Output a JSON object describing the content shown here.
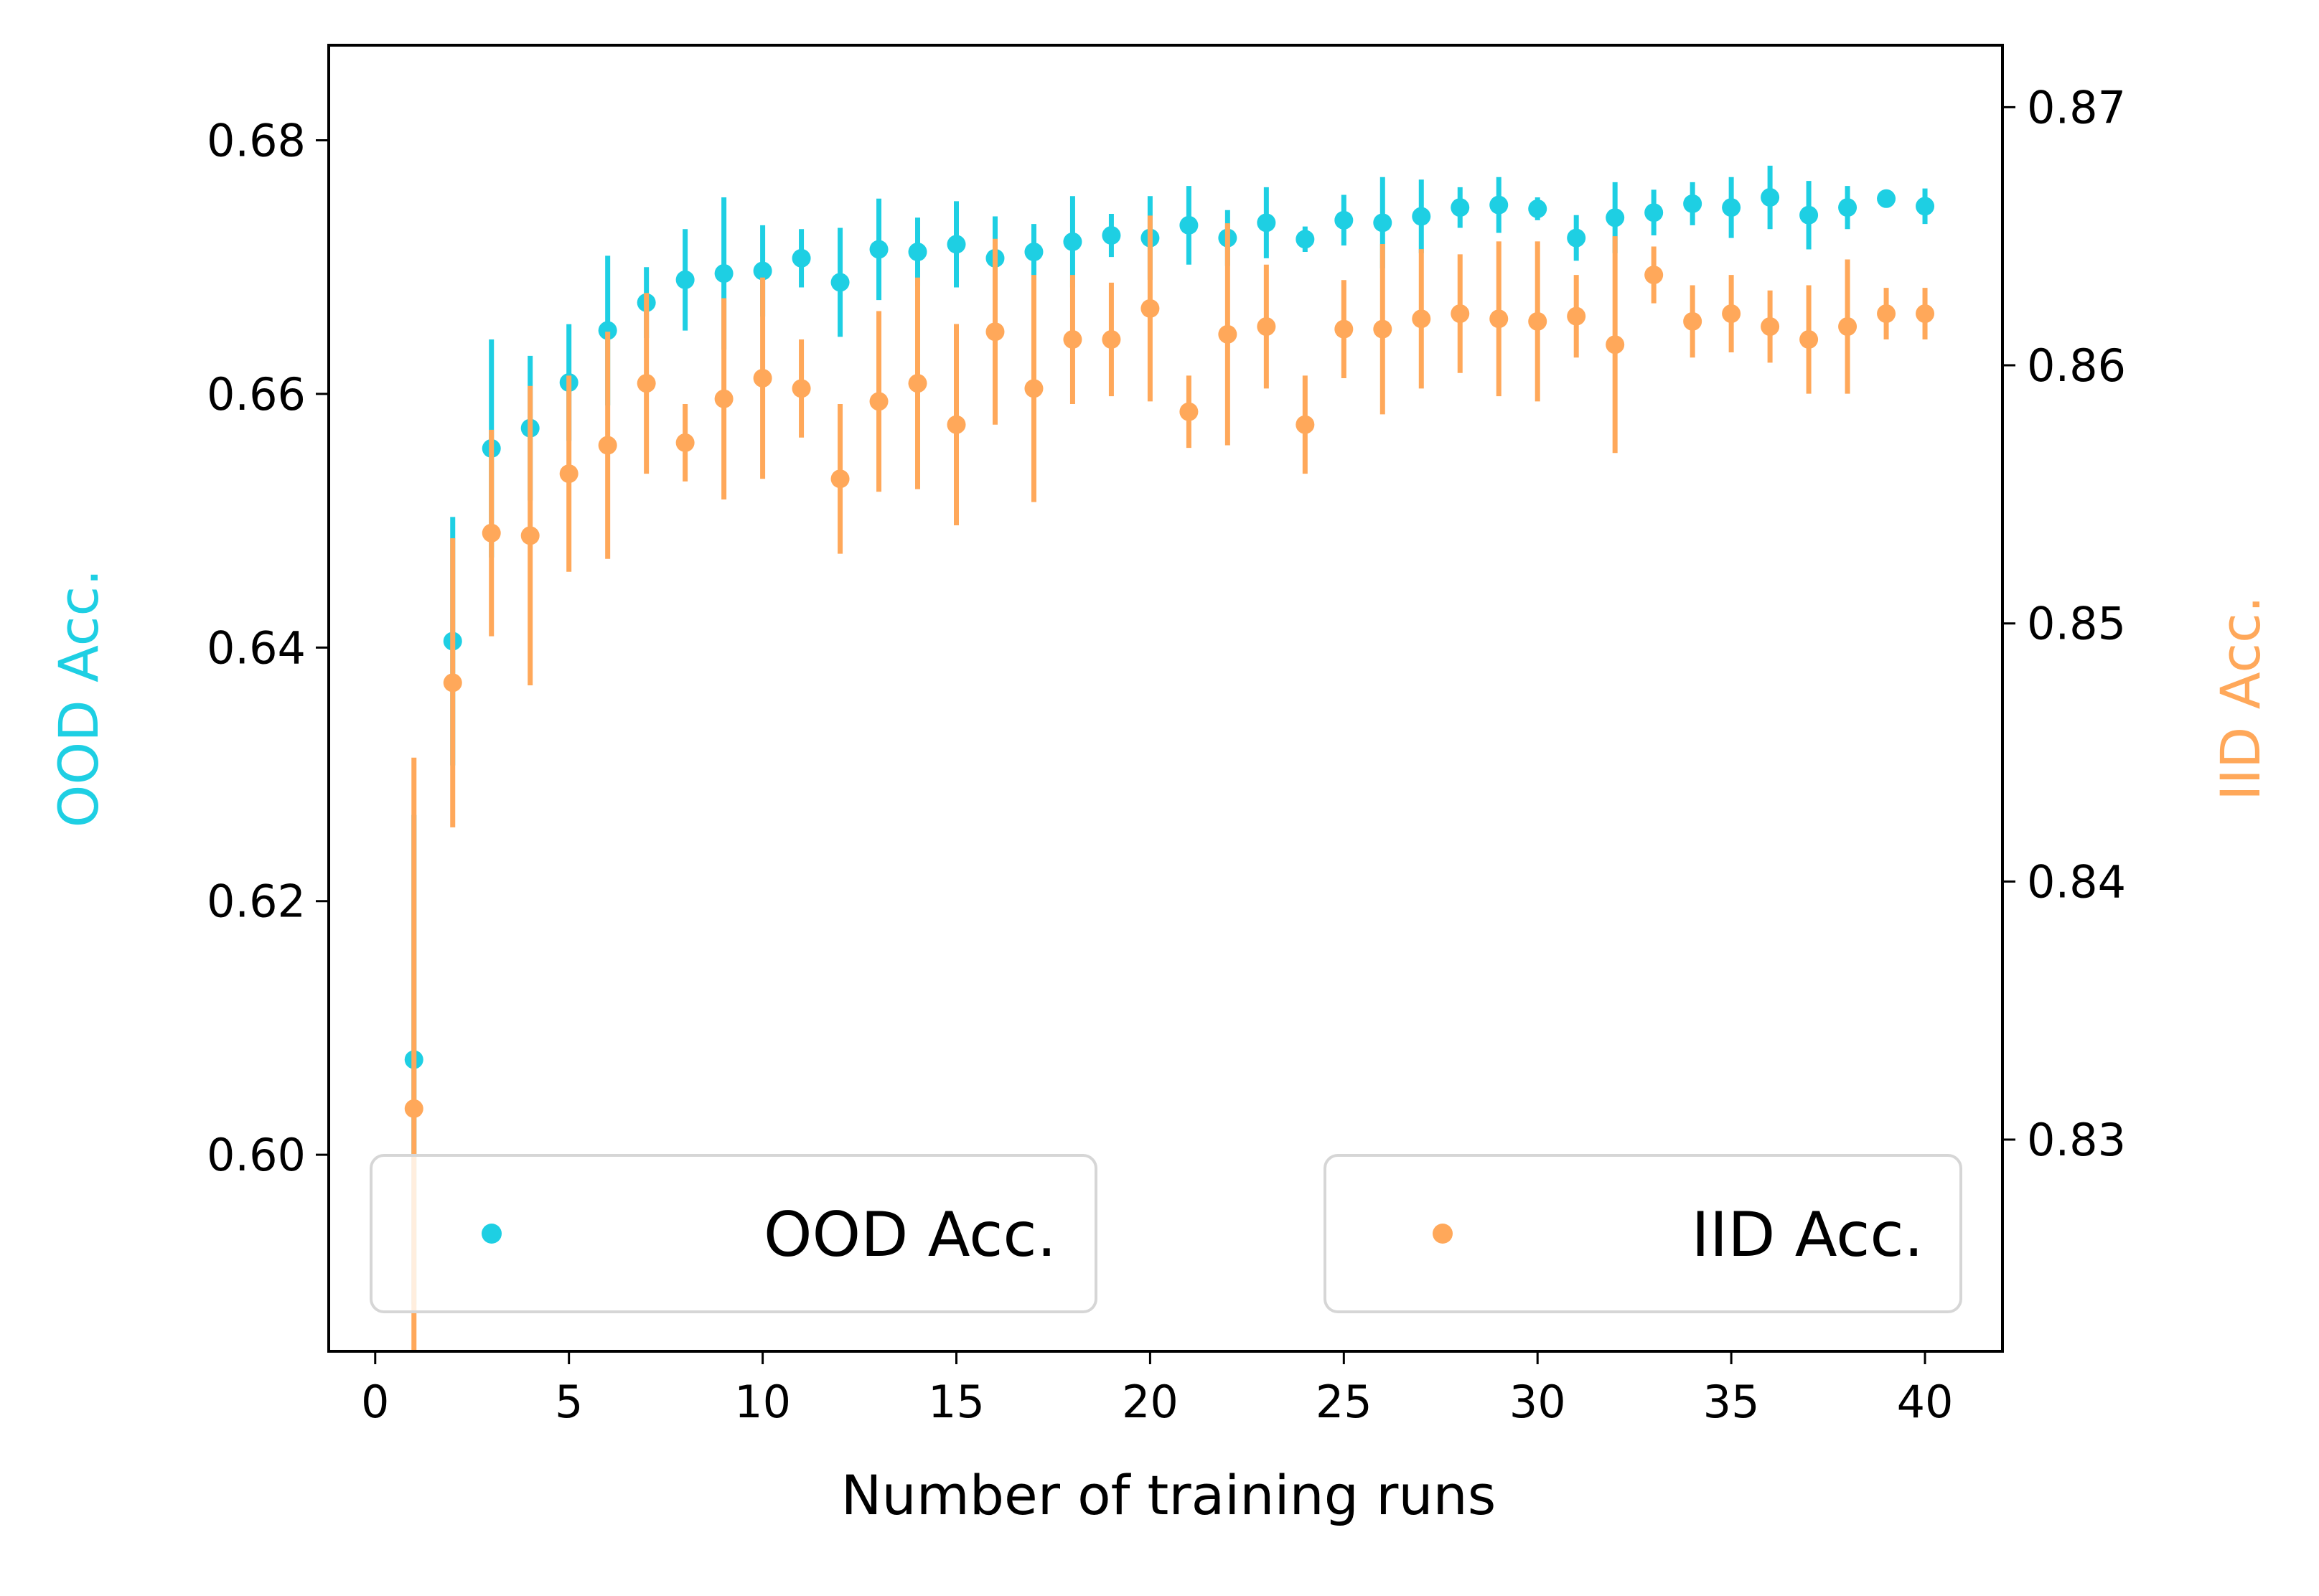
{
  "chart_data": {
    "type": "scatter",
    "title": "",
    "xlabel": "Number of training runs",
    "ylabel_left": "OOD Acc.",
    "ylabel_right": "IID Acc.",
    "xlim": [
      -1.2,
      42.0
    ],
    "ylim_left": [
      0.5845,
      0.6875
    ],
    "ylim_right": [
      0.8218,
      0.8724
    ],
    "x_ticks": [
      0,
      5,
      10,
      15,
      20,
      25,
      30,
      35,
      40
    ],
    "x_tick_labels": [
      "0",
      "5",
      "10",
      "15",
      "20",
      "25",
      "30",
      "35",
      "40"
    ],
    "y_left_ticks": [
      0.6,
      0.62,
      0.64,
      0.66,
      0.68
    ],
    "y_left_tick_labels": [
      "0.60",
      "0.62",
      "0.64",
      "0.66",
      "0.68"
    ],
    "y_right_ticks": [
      0.83,
      0.84,
      0.85,
      0.86,
      0.87
    ],
    "y_right_tick_labels": [
      "0.83",
      "0.84",
      "0.85",
      "0.86",
      "0.87"
    ],
    "grid": false,
    "x": [
      1,
      2,
      3,
      4,
      5,
      6,
      7,
      8,
      9,
      10,
      11,
      12,
      13,
      14,
      15,
      16,
      17,
      18,
      19,
      20,
      21,
      22,
      23,
      24,
      25,
      26,
      27,
      28,
      29,
      30,
      31,
      32,
      33,
      34,
      35,
      36,
      37,
      38,
      39,
      40
    ],
    "series": [
      {
        "name": "OOD Acc.",
        "axis": "left",
        "color": "#1ECFE3",
        "values": [
          0.6075,
          0.6405,
          0.6557,
          0.6573,
          0.6609,
          0.665,
          0.6672,
          0.669,
          0.6695,
          0.6697,
          0.6707,
          0.6688,
          0.6714,
          0.6712,
          0.6718,
          0.6707,
          0.6712,
          0.672,
          0.6725,
          0.6723,
          0.6733,
          0.6723,
          0.6735,
          0.6722,
          0.6737,
          0.6735,
          0.674,
          0.6747,
          0.6749,
          0.6746,
          0.6723,
          0.6739,
          0.6743,
          0.675,
          0.6747,
          0.6755,
          0.6741,
          0.6747,
          0.6754,
          0.6748
        ],
        "errors": [
          0.0193,
          0.0098,
          0.0086,
          0.0057,
          0.0046,
          0.0059,
          0.0028,
          0.004,
          0.006,
          0.0036,
          0.0023,
          0.0043,
          0.004,
          0.0027,
          0.0034,
          0.0033,
          0.0022,
          0.0036,
          0.0017,
          0.0033,
          0.0031,
          0.0022,
          0.0028,
          0.001,
          0.002,
          0.0036,
          0.0029,
          0.0016,
          0.0022,
          0.0009,
          0.0018,
          0.0028,
          0.0018,
          0.0017,
          0.0024,
          0.0025,
          0.0027,
          0.0017,
          0.0007,
          0.0014
        ]
      },
      {
        "name": "IID Acc.",
        "axis": "right",
        "color": "#FFA85A",
        "values": [
          0.8312,
          0.8477,
          0.8535,
          0.8534,
          0.8558,
          0.8569,
          0.8593,
          0.857,
          0.8587,
          0.8595,
          0.8591,
          0.8556,
          0.8586,
          0.8593,
          0.8577,
          0.8613,
          0.8591,
          0.861,
          0.861,
          0.8622,
          0.8582,
          0.8612,
          0.8615,
          0.8577,
          0.8614,
          0.8614,
          0.8618,
          0.862,
          0.8618,
          0.8617,
          0.8619,
          0.8608,
          0.8635,
          0.8617,
          0.862,
          0.8615,
          0.861,
          0.8615,
          0.862,
          0.862
        ],
        "errors": [
          0.0136,
          0.0056,
          0.004,
          0.0058,
          0.0038,
          0.0044,
          0.0035,
          0.0015,
          0.0039,
          0.0039,
          0.0019,
          0.0029,
          0.0035,
          0.0041,
          0.0039,
          0.0036,
          0.0044,
          0.0025,
          0.0022,
          0.0036,
          0.0014,
          0.0043,
          0.0024,
          0.0019,
          0.0019,
          0.0033,
          0.0027,
          0.0023,
          0.003,
          0.0031,
          0.0016,
          0.0042,
          0.0011,
          0.0014,
          0.0015,
          0.0014,
          0.0021,
          0.0026,
          0.001,
          0.001
        ]
      }
    ],
    "legends": [
      {
        "label": "OOD Acc.",
        "placement": "lower-left"
      },
      {
        "label": "IID Acc.",
        "placement": "lower-right"
      }
    ]
  }
}
